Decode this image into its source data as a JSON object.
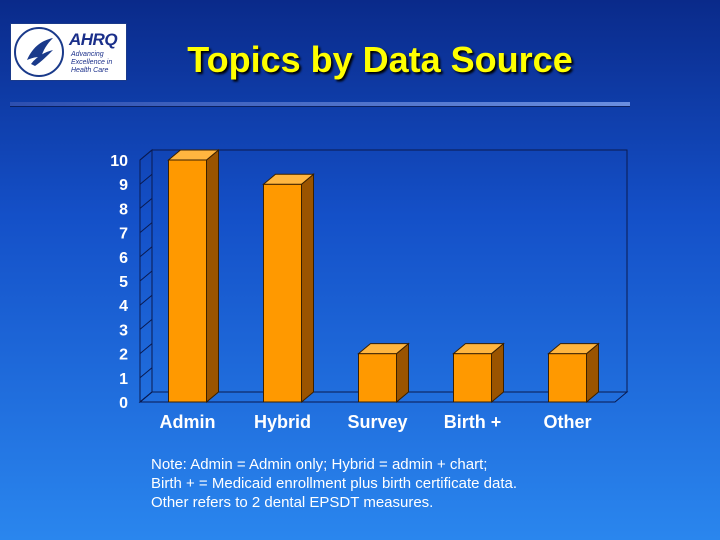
{
  "slide": {
    "title": "Topics by Data Source",
    "note_lines": [
      "Note:   Admin = Admin only; Hybrid = admin + chart;",
      "Birth + =  Medicaid enrollment plus birth certificate data.",
      "Other refers to 2 dental EPSDT measures."
    ]
  },
  "logo": {
    "name": "AHRQ",
    "tagline": [
      "Advancing",
      "Excellence in",
      "Health Care"
    ]
  },
  "colors": {
    "bar_face": "#ff9900",
    "bar_side": "#9a5400",
    "bar_top": "#ffb640",
    "axis_text": "#ffffff",
    "title_text": "#ffff00"
  },
  "chart_data": {
    "type": "bar",
    "title": "",
    "xlabel": "",
    "ylabel": "",
    "categories": [
      "Admin",
      "Hybrid",
      "Survey",
      "Birth +",
      "Other"
    ],
    "values": [
      10,
      9,
      2,
      2,
      2
    ],
    "ylim": [
      0,
      10
    ],
    "yticks": [
      0,
      1,
      2,
      3,
      4,
      5,
      6,
      7,
      8,
      9,
      10
    ],
    "grid": false,
    "legend": "none"
  }
}
